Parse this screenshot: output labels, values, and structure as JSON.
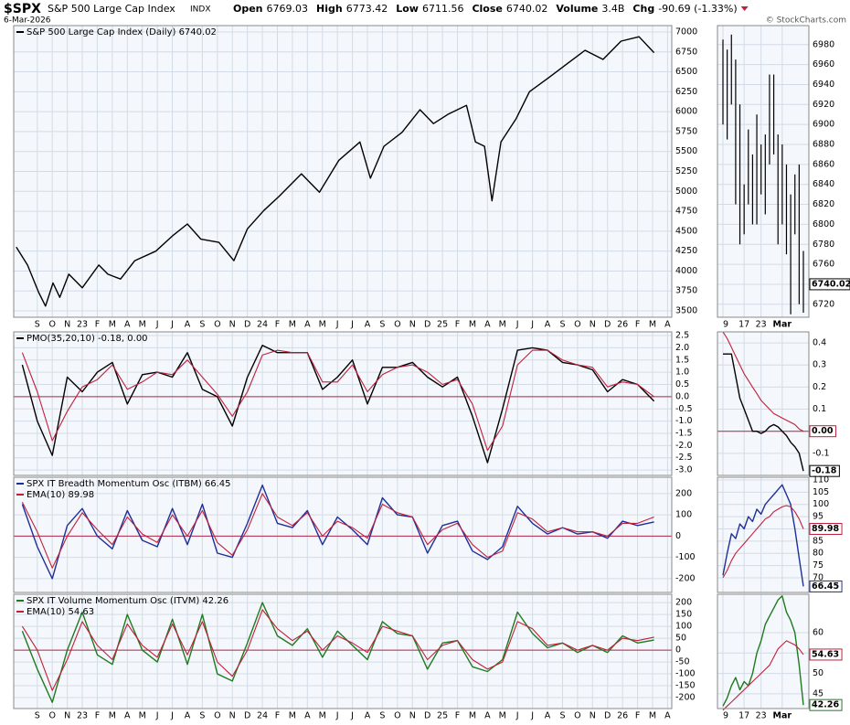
{
  "header": {
    "symbol": "$SPX",
    "name": "S&P 500 Large Cap Index",
    "exchange": "INDX",
    "date": "6-Mar-2026",
    "fields": [
      {
        "label": "Open",
        "value": "6769.03"
      },
      {
        "label": "High",
        "value": "6773.42"
      },
      {
        "label": "Low",
        "value": "6711.56"
      },
      {
        "label": "Close",
        "value": "6740.02"
      },
      {
        "label": "Volume",
        "value": "3.4B"
      },
      {
        "label": "Chg",
        "value": "-90.69 (-1.33%)"
      }
    ],
    "credit": "© StockCharts.com"
  },
  "chart_data": [
    {
      "type": "line",
      "xlim": [
        -4.57,
        39.28
      ],
      "ylim": [
        3420,
        7080
      ],
      "yticks": [
        7000,
        6750,
        6500,
        6250,
        6000,
        5750,
        5500,
        5250,
        5000,
        4750,
        4500,
        4250,
        4000,
        3750,
        3500
      ],
      "xticks": [
        {
          "value": -3,
          "label": "S"
        },
        {
          "value": -2,
          "label": "O"
        },
        {
          "value": -1,
          "label": "N"
        },
        {
          "value": 0,
          "label": "23"
        },
        {
          "value": 1,
          "label": "F"
        },
        {
          "value": 2,
          "label": "M"
        },
        {
          "value": 3,
          "label": "A"
        },
        {
          "value": 4,
          "label": "M"
        },
        {
          "value": 5,
          "label": "J"
        },
        {
          "value": 6,
          "label": "J"
        },
        {
          "value": 7,
          "label": "A"
        },
        {
          "value": 8,
          "label": "S"
        },
        {
          "value": 9,
          "label": "O"
        },
        {
          "value": 10,
          "label": "N"
        },
        {
          "value": 11,
          "label": "D"
        },
        {
          "value": 12,
          "label": "24"
        },
        {
          "value": 13,
          "label": "F"
        },
        {
          "value": 14,
          "label": "M"
        },
        {
          "value": 15,
          "label": "A"
        },
        {
          "value": 16,
          "label": "M"
        },
        {
          "value": 17,
          "label": "J"
        },
        {
          "value": 18,
          "label": "J"
        },
        {
          "value": 19,
          "label": "A"
        },
        {
          "value": 20,
          "label": "S"
        },
        {
          "value": 21,
          "label": "O"
        },
        {
          "value": 22,
          "label": "N"
        },
        {
          "value": 23,
          "label": "D"
        },
        {
          "value": 24,
          "label": "25"
        },
        {
          "value": 25,
          "label": "F"
        },
        {
          "value": 26,
          "label": "M"
        },
        {
          "value": 27,
          "label": "A"
        },
        {
          "value": 28,
          "label": "M"
        },
        {
          "value": 29,
          "label": "J"
        },
        {
          "value": 30,
          "label": "J"
        },
        {
          "value": 31,
          "label": "A"
        },
        {
          "value": 32,
          "label": "S"
        },
        {
          "value": 33,
          "label": "O"
        },
        {
          "value": 34,
          "label": "N"
        },
        {
          "value": 35,
          "label": "D"
        },
        {
          "value": 36,
          "label": "26"
        },
        {
          "value": 37,
          "label": "F"
        },
        {
          "value": 38,
          "label": "M"
        },
        {
          "value": 39,
          "label": "A"
        }
      ],
      "x": [
        -4.4,
        -3.65,
        -2.9,
        -2.45,
        -1.95,
        -1.5,
        -0.9,
        0,
        1.1,
        1.7,
        2.55,
        3.5,
        4.9,
        6.0,
        7.0,
        7.9,
        9.1,
        10.1,
        11.0,
        12.1,
        13.1,
        14.6,
        15.8,
        17.1,
        18.5,
        19.2,
        20.1,
        21.3,
        22.5,
        23.4,
        24.4,
        25.6,
        26.2,
        26.8,
        27.3,
        27.9,
        28.9,
        29.8,
        31.1,
        32.3,
        33.5,
        34.7,
        35.9,
        37.1,
        38.1
      ],
      "series": [
        {
          "name": "S&P 500 Large Cap Index (Daily) 6740.02",
          "color": "#000000",
          "values": [
            4300,
            4075,
            3730,
            3560,
            3850,
            3670,
            3960,
            3790,
            4075,
            3960,
            3900,
            4130,
            4250,
            4440,
            4590,
            4400,
            4360,
            4130,
            4530,
            4760,
            4935,
            5220,
            4990,
            5390,
            5620,
            5165,
            5565,
            5740,
            6025,
            5850,
            5970,
            6080,
            5620,
            5565,
            4880,
            5620,
            5910,
            6250,
            6430,
            6600,
            6770,
            6655,
            6885,
            6940,
            6740.02
          ]
        }
      ],
      "grid": true
    },
    {
      "type": "line",
      "xlim": [
        -4.57,
        39.28
      ],
      "ylim": [
        -3.22,
        2.65
      ],
      "zero_line": "#b0284a",
      "yticks": [
        2.5,
        {
          "value": 2,
          "label": "2.0"
        },
        1.5,
        {
          "value": 1,
          "label": "1.0"
        },
        0.5,
        {
          "value": 0,
          "label": "0.0"
        },
        -0.5,
        {
          "value": -1,
          "label": "-1.0"
        },
        -1.5,
        {
          "value": -2,
          "label": "-2.0"
        },
        -2.5,
        {
          "value": -3,
          "label": "-3.0"
        }
      ],
      "x": [
        -4,
        -3,
        -2,
        -1,
        0,
        1,
        2,
        3,
        4,
        5,
        6,
        7,
        8,
        9,
        10,
        11,
        12,
        13,
        14,
        15,
        16,
        17,
        18,
        19,
        20,
        21,
        22,
        23,
        24,
        25,
        26,
        27,
        28,
        29,
        30,
        31,
        32,
        33,
        34,
        35,
        36,
        37,
        38.1
      ],
      "series": [
        {
          "name": "PMO(35,20,10) -0.18, 0.00",
          "color": "#000000",
          "values": [
            1.3,
            -1.0,
            -2.4,
            0.8,
            0.2,
            1.0,
            1.4,
            -0.3,
            0.9,
            1.0,
            0.8,
            1.8,
            0.3,
            0.0,
            -1.2,
            0.8,
            2.1,
            1.8,
            1.8,
            1.8,
            0.3,
            0.8,
            1.5,
            -0.3,
            1.2,
            1.2,
            1.4,
            0.8,
            0.4,
            0.8,
            -0.8,
            -2.7,
            -0.5,
            1.9,
            2.0,
            1.9,
            1.4,
            1.3,
            1.1,
            0.2,
            0.7,
            0.5,
            -0.18
          ]
        },
        {
          "color": "#c0203c",
          "values": [
            1.8,
            0.2,
            -1.8,
            -0.6,
            0.4,
            0.7,
            1.3,
            0.3,
            0.6,
            1.0,
            0.9,
            1.5,
            0.8,
            0.1,
            -0.8,
            0.2,
            1.7,
            1.9,
            1.8,
            1.8,
            0.6,
            0.6,
            1.3,
            0.2,
            0.9,
            1.2,
            1.3,
            1.0,
            0.5,
            0.7,
            -0.3,
            -2.2,
            -1.2,
            1.3,
            1.9,
            1.9,
            1.5,
            1.3,
            1.2,
            0.4,
            0.6,
            0.5,
            0
          ]
        }
      ],
      "grid": true
    },
    {
      "type": "line",
      "xlim": [
        -4.57,
        39.28
      ],
      "ylim": [
        -265,
        277
      ],
      "zero_line": "#b0284a",
      "yticks": [
        200,
        100,
        0,
        -100,
        -200
      ],
      "x": [
        -4,
        -3,
        -2,
        -1,
        0,
        1,
        2,
        3,
        4,
        5,
        6,
        7,
        8,
        9,
        10,
        11,
        12,
        13,
        14,
        15,
        16,
        17,
        18,
        19,
        20,
        21,
        22,
        23,
        24,
        25,
        26,
        27,
        28,
        29,
        30,
        31,
        32,
        33,
        34,
        35,
        36,
        37,
        38.1
      ],
      "series": [
        {
          "name": "SPX IT Breadth Momentum Osc (ITBM) 66.45",
          "color": "#1f2f9a",
          "values": [
            150,
            -50,
            -200,
            50,
            130,
            0,
            -60,
            120,
            -20,
            -50,
            130,
            -40,
            150,
            -80,
            -100,
            60,
            240,
            60,
            40,
            120,
            -40,
            90,
            30,
            -40,
            180,
            100,
            90,
            -80,
            50,
            70,
            -70,
            -110,
            -50,
            140,
            60,
            10,
            40,
            10,
            20,
            -10,
            70,
            50,
            66.45
          ]
        },
        {
          "name": "EMA(10) 89.98",
          "color": "#c0203c",
          "values": [
            160,
            20,
            -150,
            0,
            110,
            30,
            -40,
            90,
            10,
            -30,
            100,
            0,
            120,
            -30,
            -90,
            30,
            200,
            90,
            50,
            110,
            0,
            70,
            40,
            -10,
            150,
            110,
            90,
            -40,
            30,
            60,
            -40,
            -100,
            -70,
            110,
            80,
            20,
            40,
            20,
            20,
            0,
            60,
            60,
            89.98
          ]
        }
      ],
      "grid": true
    },
    {
      "type": "line",
      "xlim": [
        -4.57,
        39.28
      ],
      "ylim": [
        -246,
        235
      ],
      "zero_line": "#b0284a",
      "yticks": [
        200,
        150,
        100,
        50,
        0,
        -50,
        -100,
        -150,
        -200
      ],
      "x": [
        -4,
        -3,
        -2,
        -1,
        0,
        1,
        2,
        3,
        4,
        5,
        6,
        7,
        8,
        9,
        10,
        11,
        12,
        13,
        14,
        15,
        16,
        17,
        18,
        19,
        20,
        21,
        22,
        23,
        24,
        25,
        26,
        27,
        28,
        29,
        30,
        31,
        32,
        33,
        34,
        35,
        36,
        37,
        38.1
      ],
      "series": [
        {
          "name": "SPX IT Volume Momentum Osc (ITVM) 42.26",
          "color": "#1f7a1f",
          "values": [
            80,
            -80,
            -220,
            0,
            160,
            -20,
            -60,
            150,
            0,
            -50,
            130,
            -60,
            150,
            -100,
            -130,
            30,
            200,
            60,
            20,
            90,
            -30,
            80,
            20,
            -40,
            120,
            70,
            60,
            -80,
            30,
            40,
            -70,
            -90,
            -40,
            160,
            70,
            10,
            30,
            -10,
            20,
            -10,
            60,
            30,
            42.26
          ]
        },
        {
          "name": "EMA(10) 54.63",
          "color": "#c0203c",
          "values": [
            100,
            0,
            -170,
            -40,
            120,
            20,
            -40,
            110,
            20,
            -30,
            110,
            -20,
            120,
            -50,
            -110,
            0,
            170,
            90,
            40,
            80,
            0,
            60,
            30,
            -10,
            100,
            80,
            60,
            -40,
            20,
            40,
            -40,
            -80,
            -50,
            120,
            90,
            20,
            30,
            0,
            20,
            0,
            50,
            40,
            54.63
          ]
        }
      ],
      "grid": true
    },
    {
      "type": "hilo",
      "ylim": [
        6707,
        6999
      ],
      "yticks": [
        6980,
        6960,
        6940,
        6920,
        6900,
        6880,
        6860,
        6840,
        6820,
        6800,
        6780,
        6760,
        6740,
        6720
      ],
      "categories": [
        "9",
        null,
        null,
        null,
        null,
        "17",
        null,
        null,
        null,
        "23",
        null,
        null,
        null,
        null,
        "Mar",
        null,
        null,
        null,
        null,
        null
      ],
      "series": [
        {
          "color": "#000000",
          "high": [
            6985,
            6975,
            6990,
            6965,
            6920,
            6840,
            6895,
            6870,
            6910,
            6880,
            6890,
            6950,
            6950,
            6890,
            6880,
            6860,
            6830,
            6850,
            6860,
            6773.42
          ],
          "low": [
            6900,
            6885,
            6920,
            6820,
            6780,
            6790,
            6820,
            6800,
            6800,
            6830,
            6810,
            6860,
            6870,
            6780,
            6800,
            6770,
            6710,
            6790,
            6720,
            6711.56
          ]
        }
      ],
      "grid": true
    },
    {
      "type": "line",
      "ylim": [
        -0.2,
        0.45
      ],
      "zero_line": "#b0284a",
      "yticks": [
        0.4,
        0.3,
        0.2,
        0.1,
        {
          "value": 0,
          "label": "0.0"
        },
        -0.1
      ],
      "series": [
        {
          "color": "#000000",
          "values": [
            0.35,
            0.35,
            0.35,
            0.25,
            0.15,
            0.1,
            0.05,
            0.0,
            0.0,
            -0.01,
            0.0,
            0.02,
            0.03,
            0.02,
            0.0,
            -0.02,
            -0.05,
            -0.07,
            -0.1,
            -0.18
          ]
        },
        {
          "color": "#c0203c",
          "values": [
            0.45,
            0.42,
            0.38,
            0.34,
            0.3,
            0.26,
            0.23,
            0.2,
            0.17,
            0.14,
            0.12,
            0.1,
            0.08,
            0.07,
            0.06,
            0.05,
            0.04,
            0.03,
            0.01,
            0
          ],
          "value_labels": [
            null,
            null,
            null,
            null,
            null,
            null,
            null,
            null,
            null,
            null,
            null,
            null,
            null,
            null,
            null,
            null,
            null,
            null,
            null,
            "0.00"
          ]
        }
      ],
      "grid": true
    },
    {
      "type": "line",
      "ylim": [
        64,
        111.1
      ],
      "yticks": [
        110,
        105,
        100,
        95,
        90,
        85,
        80,
        75,
        70
      ],
      "series": [
        {
          "color": "#1f2f9a",
          "values": [
            71,
            80,
            88,
            86,
            92,
            90,
            95,
            93,
            98,
            96,
            100,
            102,
            104,
            106,
            108,
            104,
            100,
            90,
            78,
            66.45
          ]
        },
        {
          "color": "#c0203c",
          "values": [
            70,
            73,
            77,
            80,
            82,
            84,
            86,
            88,
            90,
            92,
            94,
            95,
            97,
            98,
            99,
            99.5,
            99,
            97,
            94,
            89.98
          ]
        }
      ],
      "grid": true
    },
    {
      "type": "line",
      "ylim": [
        41.4,
        69.4
      ],
      "yticks": [
        60,
        55,
        50,
        45
      ],
      "series": [
        {
          "color": "#1f7a1f",
          "values": [
            42,
            44,
            47,
            49,
            46,
            48,
            47,
            50,
            55,
            58,
            62,
            64,
            66,
            68,
            69,
            65,
            63,
            60,
            52,
            42.26
          ]
        },
        {
          "color": "#c0203c",
          "values": [
            41,
            42,
            43,
            44,
            45,
            46,
            47,
            48,
            49,
            50,
            51,
            52,
            54,
            56,
            57,
            58,
            57.5,
            57,
            56,
            54.63
          ]
        }
      ],
      "grid": true
    }
  ]
}
